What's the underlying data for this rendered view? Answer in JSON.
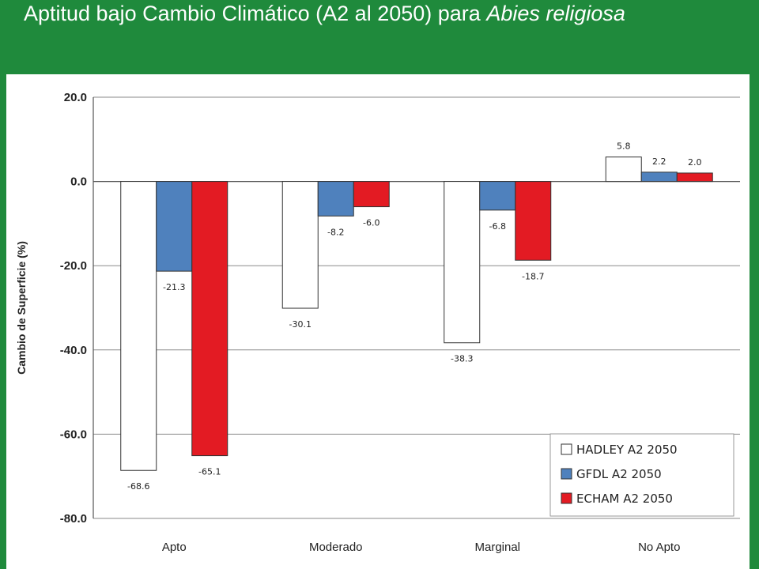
{
  "slide": {
    "title_main": "Aptitud bajo Cambio Climático (A2 al 2050) para ",
    "title_species": "Abies religiosa"
  },
  "colors": {
    "background": "#1f8a3c",
    "panel": "#ffffff"
  },
  "chart_data": {
    "type": "bar",
    "ylabel": "Cambio de Superficie  (%)",
    "xlabel": "",
    "ylim": [
      -80,
      20
    ],
    "yticks": [
      20,
      0,
      -20,
      -40,
      -60,
      -80
    ],
    "grid": true,
    "legend_position": "bottom-right",
    "categories": [
      "Apto",
      "Moderado",
      "Marginal",
      "No Apto"
    ],
    "series": [
      {
        "name": "HADLEY A2 2050",
        "color": "#ffffff",
        "values": [
          -68.6,
          -30.1,
          -38.3,
          5.8
        ]
      },
      {
        "name": "GFDL A2 2050",
        "color": "#4f81bd",
        "values": [
          -21.3,
          -8.2,
          -6.8,
          2.2
        ]
      },
      {
        "name": "ECHAM A2 2050",
        "color": "#e31b23",
        "values": [
          -65.1,
          -6.0,
          -18.7,
          2.0
        ]
      }
    ]
  }
}
